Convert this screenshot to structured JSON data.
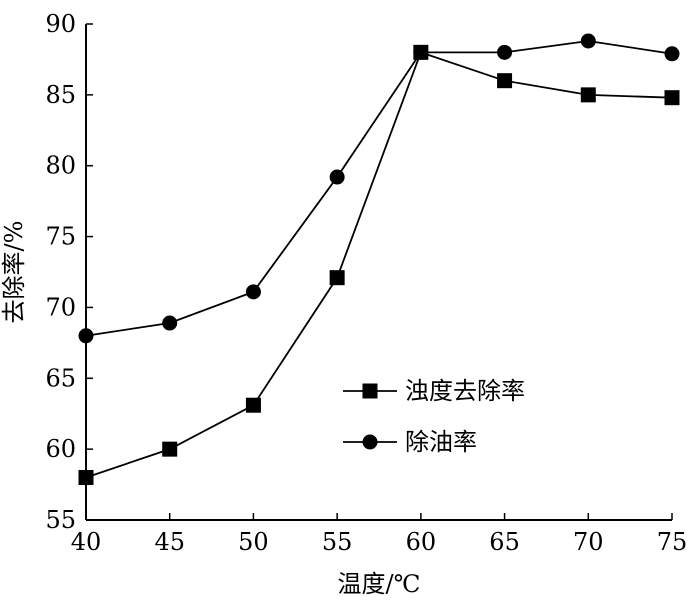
{
  "chart_data": {
    "type": "line",
    "x": [
      40,
      45,
      50,
      55,
      60,
      65,
      70,
      75
    ],
    "xlim": [
      40,
      75
    ],
    "ylim": [
      55,
      90
    ],
    "xticks": [
      40,
      45,
      50,
      55,
      60,
      65,
      70,
      75
    ],
    "yticks": [
      55,
      60,
      65,
      70,
      75,
      80,
      85,
      90
    ],
    "xlabel": "温度/℃",
    "ylabel": "去除率/%",
    "grid": false,
    "legend_position": "center-right",
    "series": [
      {
        "name": "浊度去除率",
        "marker": "square",
        "values": [
          58.0,
          60.0,
          63.1,
          72.1,
          88.0,
          86.0,
          85.0,
          84.8
        ]
      },
      {
        "name": "除油率",
        "marker": "circle",
        "values": [
          68.0,
          68.9,
          71.1,
          79.2,
          88.0,
          88.0,
          88.8,
          87.9
        ]
      }
    ],
    "colors": {
      "line": "#000000",
      "marker": "#000000"
    }
  }
}
